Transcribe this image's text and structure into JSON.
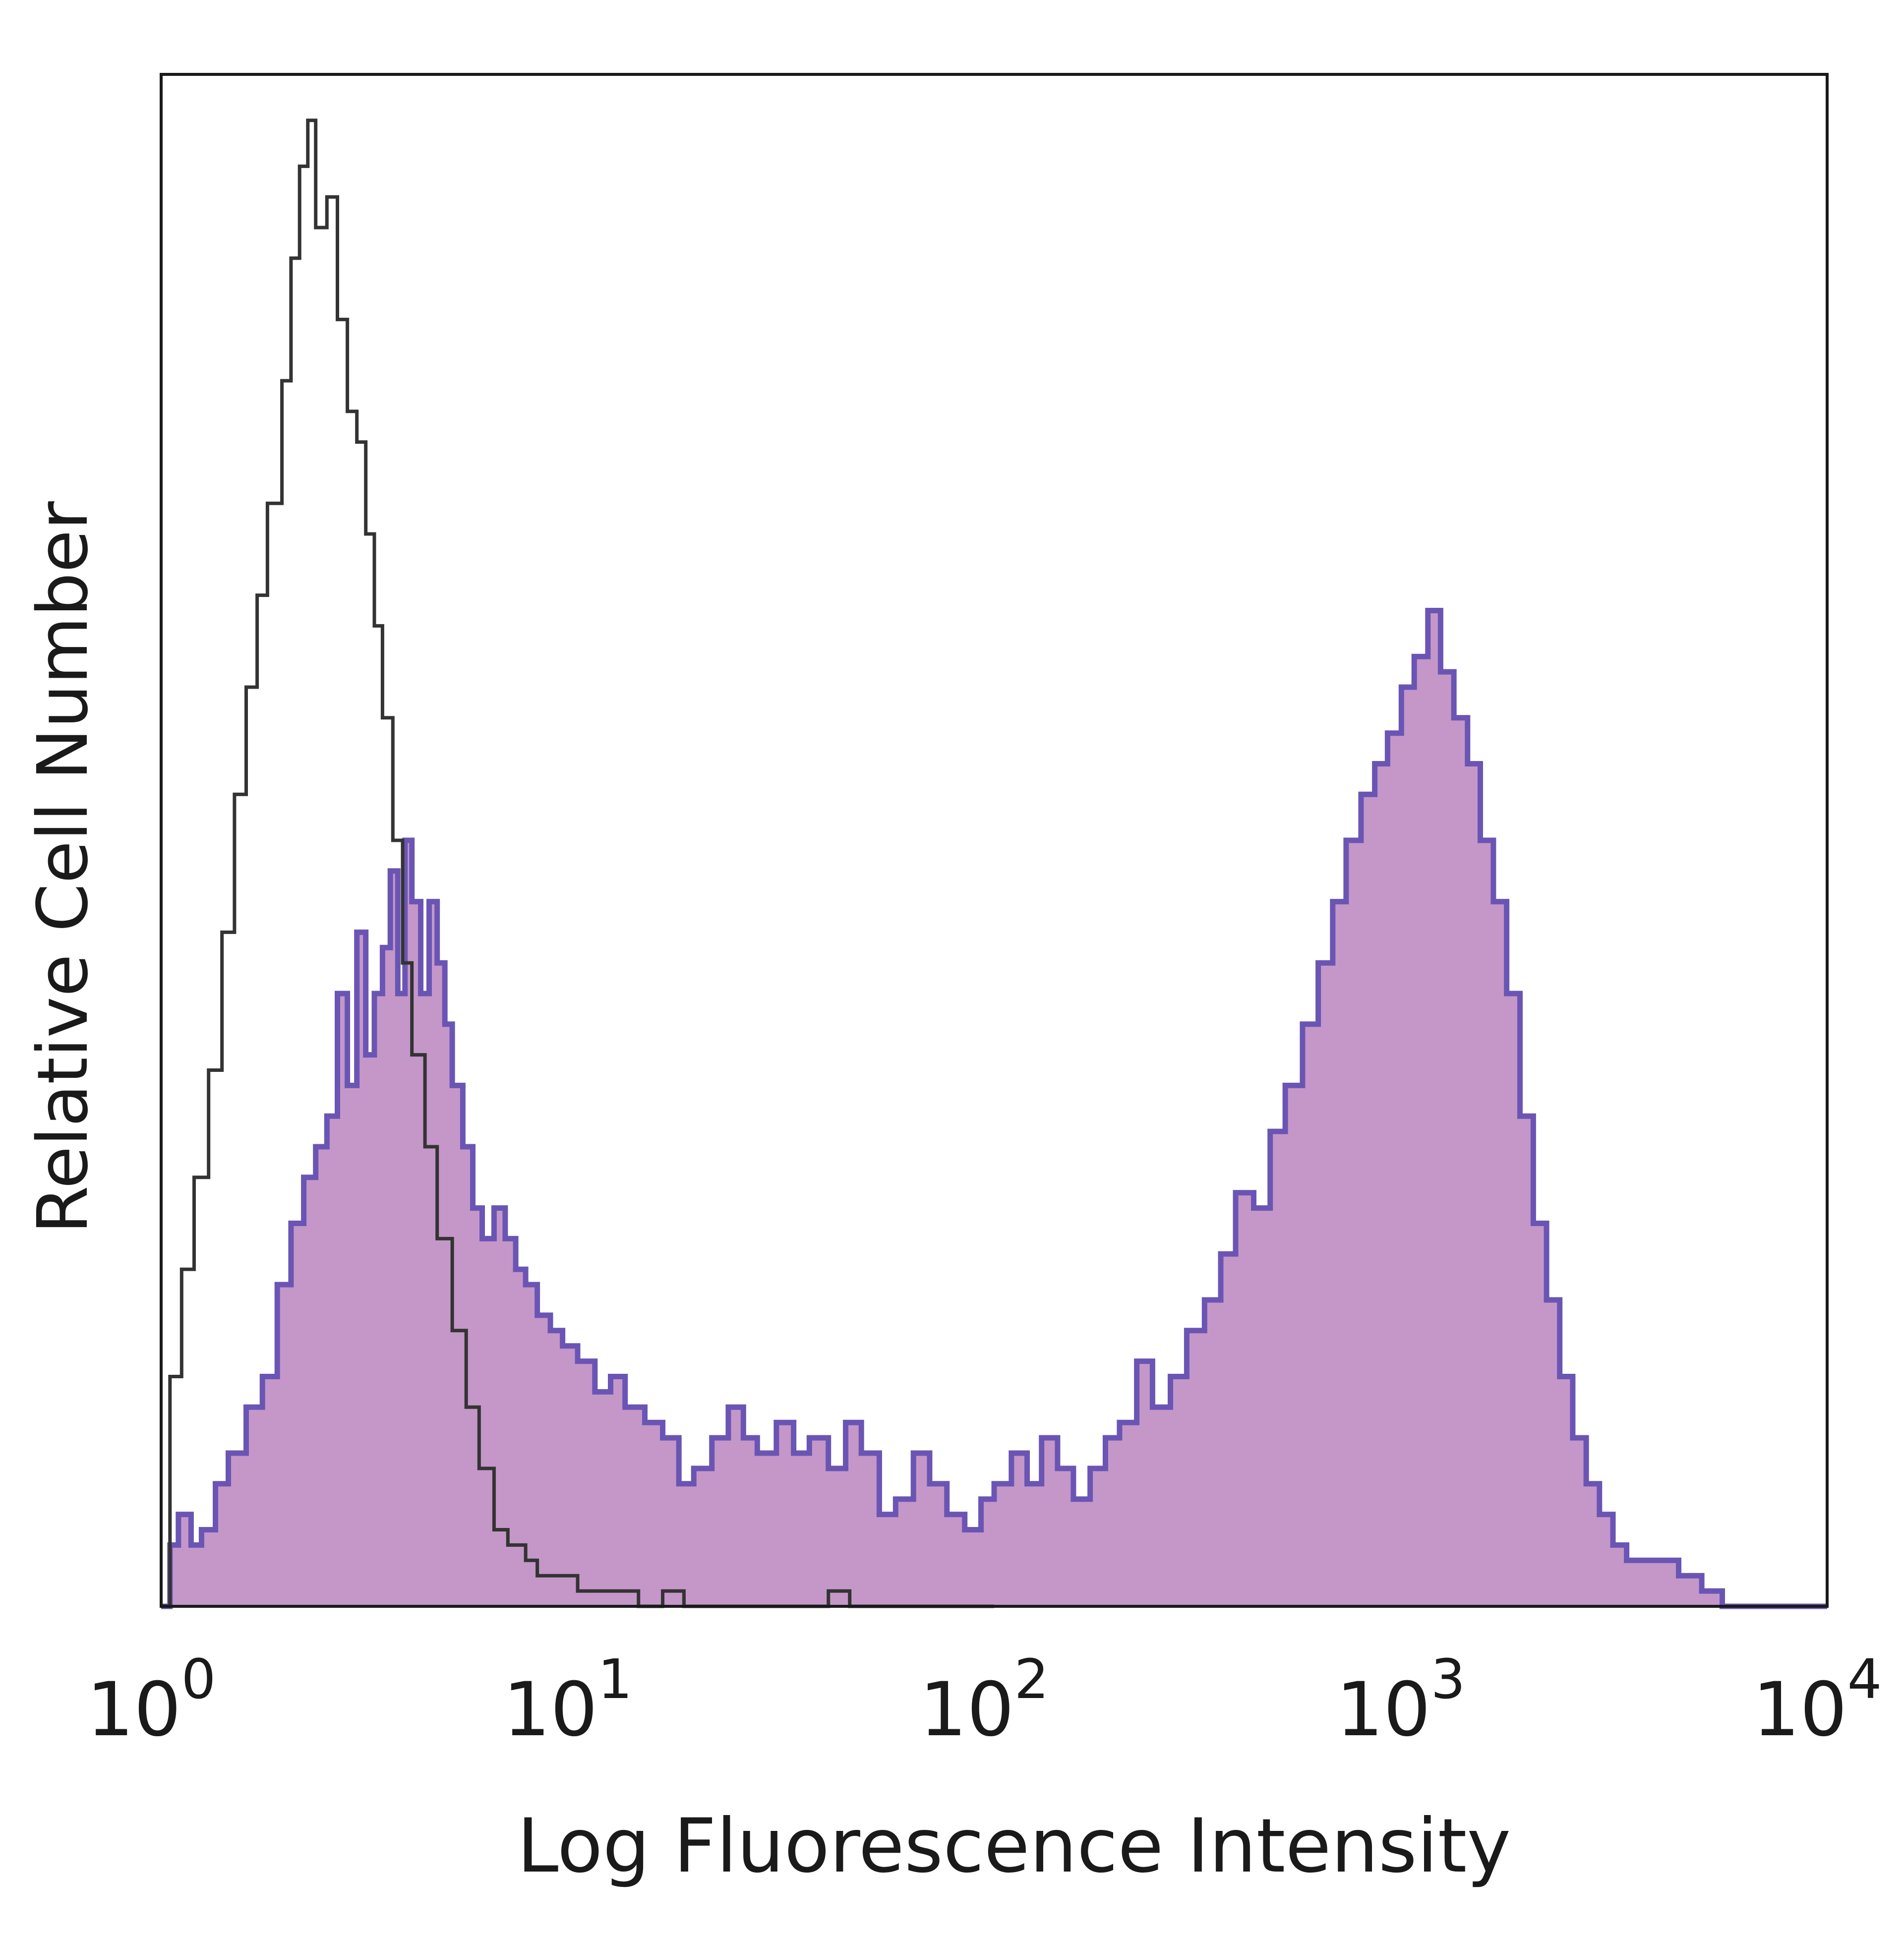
{
  "chart_data": {
    "type": "area",
    "title": "",
    "xlabel": "Log Fluorescence Intensity",
    "ylabel": "Relative Cell Number",
    "xscale": "log",
    "xlim": [
      1,
      10000
    ],
    "ylim": [
      0,
      100
    ],
    "x_ticks": [
      {
        "value": 1,
        "base": "10",
        "exp": "0"
      },
      {
        "value": 10,
        "base": "10",
        "exp": "1"
      },
      {
        "value": 100,
        "base": "10",
        "exp": "2"
      },
      {
        "value": 1000,
        "base": "10",
        "exp": "3"
      },
      {
        "value": 10000,
        "base": "10",
        "exp": "4"
      }
    ],
    "grid": false,
    "legend": "none",
    "series": [
      {
        "style": "outline",
        "color": "#333333",
        "points": [
          [
            1.0,
            0
          ],
          [
            1.05,
            15
          ],
          [
            1.12,
            22
          ],
          [
            1.2,
            28
          ],
          [
            1.3,
            35
          ],
          [
            1.4,
            44
          ],
          [
            1.5,
            53
          ],
          [
            1.6,
            60
          ],
          [
            1.7,
            66
          ],
          [
            1.8,
            72
          ],
          [
            1.95,
            80
          ],
          [
            2.05,
            88
          ],
          [
            2.15,
            94
          ],
          [
            2.25,
            97
          ],
          [
            2.35,
            90
          ],
          [
            2.5,
            92
          ],
          [
            2.65,
            84
          ],
          [
            2.8,
            78
          ],
          [
            2.95,
            76
          ],
          [
            3.1,
            70
          ],
          [
            3.25,
            64
          ],
          [
            3.4,
            58
          ],
          [
            3.6,
            50
          ],
          [
            3.8,
            42
          ],
          [
            4.0,
            36
          ],
          [
            4.3,
            30
          ],
          [
            4.6,
            24
          ],
          [
            5.0,
            18
          ],
          [
            5.4,
            13
          ],
          [
            5.8,
            9
          ],
          [
            6.3,
            5
          ],
          [
            6.8,
            4
          ],
          [
            7.5,
            3
          ],
          [
            8.0,
            2
          ],
          [
            9.0,
            2
          ],
          [
            10.0,
            1
          ],
          [
            12.0,
            1
          ],
          [
            14.0,
            0
          ],
          [
            16.0,
            1
          ],
          [
            18.0,
            0
          ],
          [
            30.0,
            0
          ],
          [
            40.0,
            1
          ],
          [
            45.0,
            0
          ],
          [
            100.0,
            0
          ]
        ]
      },
      {
        "style": "filled",
        "fill": "#c497c8",
        "color": "#6a55b4",
        "points": [
          [
            1.0,
            0
          ],
          [
            1.05,
            4
          ],
          [
            1.1,
            6
          ],
          [
            1.18,
            4
          ],
          [
            1.25,
            5
          ],
          [
            1.35,
            8
          ],
          [
            1.45,
            10
          ],
          [
            1.6,
            13
          ],
          [
            1.75,
            15
          ],
          [
            1.9,
            21
          ],
          [
            2.05,
            25
          ],
          [
            2.2,
            28
          ],
          [
            2.35,
            30
          ],
          [
            2.5,
            32
          ],
          [
            2.65,
            40
          ],
          [
            2.8,
            34
          ],
          [
            2.95,
            44
          ],
          [
            3.1,
            36
          ],
          [
            3.25,
            40
          ],
          [
            3.4,
            43
          ],
          [
            3.55,
            48
          ],
          [
            3.7,
            40
          ],
          [
            3.85,
            50
          ],
          [
            4.0,
            46
          ],
          [
            4.2,
            40
          ],
          [
            4.4,
            46
          ],
          [
            4.6,
            42
          ],
          [
            4.8,
            38
          ],
          [
            5.0,
            34
          ],
          [
            5.3,
            30
          ],
          [
            5.6,
            26
          ],
          [
            5.9,
            24
          ],
          [
            6.3,
            26
          ],
          [
            6.7,
            24
          ],
          [
            7.1,
            22
          ],
          [
            7.5,
            21
          ],
          [
            8.0,
            19
          ],
          [
            8.6,
            18
          ],
          [
            9.2,
            17
          ],
          [
            10.0,
            16
          ],
          [
            11.0,
            14
          ],
          [
            12.0,
            15
          ],
          [
            13.0,
            13
          ],
          [
            14.5,
            12
          ],
          [
            16.0,
            11
          ],
          [
            17.5,
            8
          ],
          [
            19.0,
            9
          ],
          [
            21.0,
            11
          ],
          [
            23.0,
            13
          ],
          [
            25.0,
            11
          ],
          [
            27.0,
            10
          ],
          [
            30.0,
            12
          ],
          [
            33.0,
            10
          ],
          [
            36.0,
            11
          ],
          [
            40.0,
            9
          ],
          [
            44.0,
            12
          ],
          [
            48.0,
            10
          ],
          [
            53.0,
            6
          ],
          [
            58.0,
            7
          ],
          [
            64.0,
            10
          ],
          [
            70.0,
            8
          ],
          [
            77.0,
            6
          ],
          [
            85.0,
            5
          ],
          [
            93.0,
            7
          ],
          [
            100.0,
            8
          ],
          [
            110.0,
            10
          ],
          [
            120.0,
            8
          ],
          [
            130.0,
            11
          ],
          [
            142.0,
            9
          ],
          [
            155.0,
            7
          ],
          [
            170.0,
            9
          ],
          [
            185.0,
            11
          ],
          [
            200.0,
            12
          ],
          [
            220.0,
            16
          ],
          [
            240.0,
            13
          ],
          [
            265.0,
            15
          ],
          [
            290.0,
            18
          ],
          [
            320.0,
            20
          ],
          [
            350.0,
            23
          ],
          [
            380.0,
            27
          ],
          [
            420.0,
            26
          ],
          [
            460.0,
            31
          ],
          [
            500.0,
            34
          ],
          [
            550.0,
            38
          ],
          [
            600.0,
            42
          ],
          [
            650.0,
            46
          ],
          [
            700.0,
            50
          ],
          [
            760.0,
            53
          ],
          [
            820.0,
            55
          ],
          [
            880.0,
            57
          ],
          [
            950.0,
            60
          ],
          [
            1020.0,
            62
          ],
          [
            1100.0,
            65
          ],
          [
            1180.0,
            61
          ],
          [
            1270.0,
            58
          ],
          [
            1370.0,
            55
          ],
          [
            1470.0,
            50
          ],
          [
            1580.0,
            46
          ],
          [
            1700.0,
            40
          ],
          [
            1830.0,
            32
          ],
          [
            1970.0,
            25
          ],
          [
            2120.0,
            20
          ],
          [
            2280.0,
            15
          ],
          [
            2450.0,
            11
          ],
          [
            2640.0,
            8
          ],
          [
            2840.0,
            6
          ],
          [
            3060.0,
            4
          ],
          [
            3300.0,
            3
          ],
          [
            3800.0,
            3
          ],
          [
            4400.0,
            2
          ],
          [
            5000.0,
            1
          ],
          [
            5600.0,
            0
          ],
          [
            10000.0,
            0
          ]
        ]
      }
    ]
  }
}
